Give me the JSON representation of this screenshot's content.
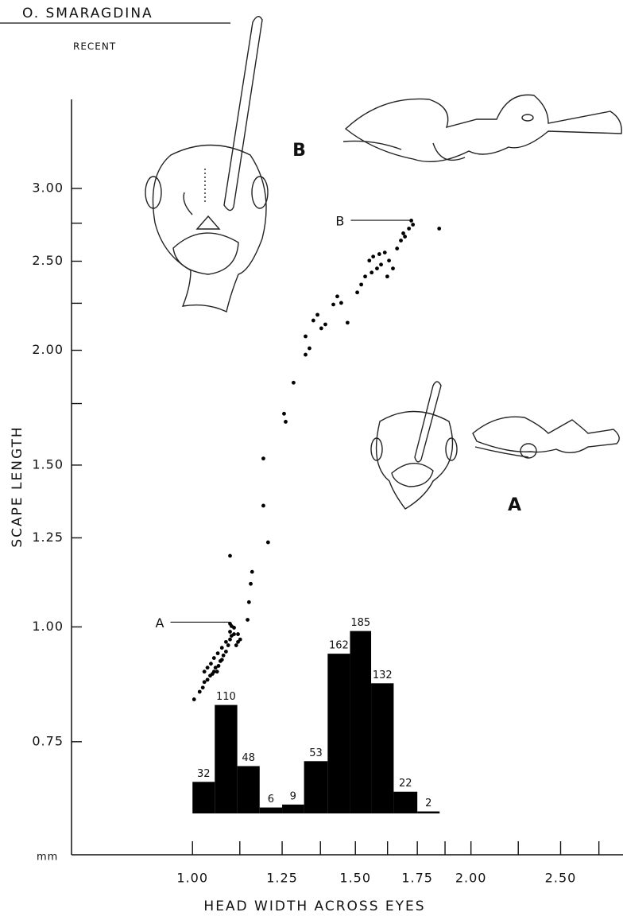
{
  "chart_data": [
    {
      "type": "scatter",
      "title": "O. SMARAGDINA",
      "subtitle": "RECENT",
      "x_label": "HEAD WIDTH ACROSS EYES",
      "y_label": "SCAPE LENGTH",
      "y_unit": "mm",
      "log_x": true,
      "log_y": true,
      "color": "#000000",
      "xlim": [
        0.74,
        2.92
      ],
      "ylim": [
        0.565,
        3.75
      ],
      "xticks": [
        {
          "value": 1,
          "label": "1.00"
        },
        1.25,
        {
          "value": 1.5,
          "label": "1.50"
        },
        1.75,
        {
          "value": 2,
          "label": "2.00"
        },
        {
          "value": 2.5,
          "label": "2.50"
        }
      ],
      "xminor": [
        1.125,
        1.375,
        1.625,
        1.875,
        2.25,
        2.75
      ],
      "yticks": [
        0.75,
        {
          "value": 1,
          "label": "1.00"
        },
        1.25,
        {
          "value": 1.5,
          "label": "1.50"
        },
        {
          "value": 2,
          "label": "2.00"
        },
        {
          "value": 2.5,
          "label": "2.50"
        },
        {
          "value": 3,
          "label": "3.00"
        }
      ],
      "yminor": [
        1.75,
        2.25,
        2.75
      ],
      "x": [
        1.004,
        1.018,
        1.026,
        1.03,
        1.038,
        1.045,
        1.051,
        1.055,
        1.059,
        1.063,
        1.067,
        1.072,
        1.076,
        1.08,
        1.087,
        1.093,
        1.098,
        1.102,
        1.109,
        1.115,
        1.12,
        1.126,
        1.12,
        1.098,
        1.102,
        1.03,
        1.038,
        1.047,
        1.055,
        1.065,
        1.076,
        1.087,
        1.098,
        1.109,
        1.147,
        1.151,
        1.156,
        1.098,
        1.16,
        1.207,
        1.193,
        1.193,
        1.256,
        1.261,
        1.286,
        1.325,
        1.338,
        1.325,
        1.351,
        1.378,
        1.392,
        1.365,
        1.42,
        1.434,
        1.448,
        1.471,
        1.507,
        1.522,
        1.537,
        1.553,
        1.568,
        1.583,
        1.599,
        1.614,
        1.624,
        1.647,
        1.664,
        1.68,
        1.697,
        1.714,
        1.724,
        1.731,
        1.848,
        1.562,
        1.592,
        1.631,
        1.69
      ],
      "y": [
        0.834,
        0.85,
        0.859,
        0.871,
        0.876,
        0.885,
        0.889,
        0.894,
        0.903,
        0.894,
        0.907,
        0.918,
        0.921,
        0.931,
        0.94,
        0.955,
        0.969,
        0.978,
        0.982,
        0.955,
        0.963,
        0.969,
        0.982,
        1.008,
        1.002,
        0.894,
        0.903,
        0.912,
        0.925,
        0.936,
        0.949,
        0.963,
        0.988,
        0.998,
        1.018,
        1.064,
        1.114,
        1.195,
        1.148,
        1.236,
        1.355,
        1.525,
        1.706,
        1.672,
        1.844,
        1.978,
        2.01,
        2.071,
        2.155,
        2.113,
        2.134,
        2.186,
        2.243,
        2.289,
        2.252,
        2.143,
        2.312,
        2.358,
        2.406,
        2.504,
        2.529,
        2.455,
        2.479,
        2.555,
        2.406,
        2.455,
        2.581,
        2.633,
        2.659,
        2.713,
        2.768,
        2.74,
        2.713,
        2.43,
        2.545,
        2.504,
        2.681
      ],
      "annotations": [
        {
          "text": "A",
          "x": 1.098,
          "y": 1.012
        },
        {
          "text": "B",
          "x": 1.72,
          "y": 2.77
        }
      ],
      "figure_labels": [
        "B",
        "A"
      ]
    },
    {
      "type": "histogram",
      "color": "#000000",
      "bins": [
        1.0,
        1.057,
        1.118,
        1.182,
        1.25,
        1.32,
        1.4,
        1.48,
        1.56,
        1.65,
        1.75,
        1.85
      ],
      "values": [
        32,
        110,
        48,
        6,
        9,
        53,
        162,
        185,
        132,
        22,
        2
      ]
    }
  ]
}
